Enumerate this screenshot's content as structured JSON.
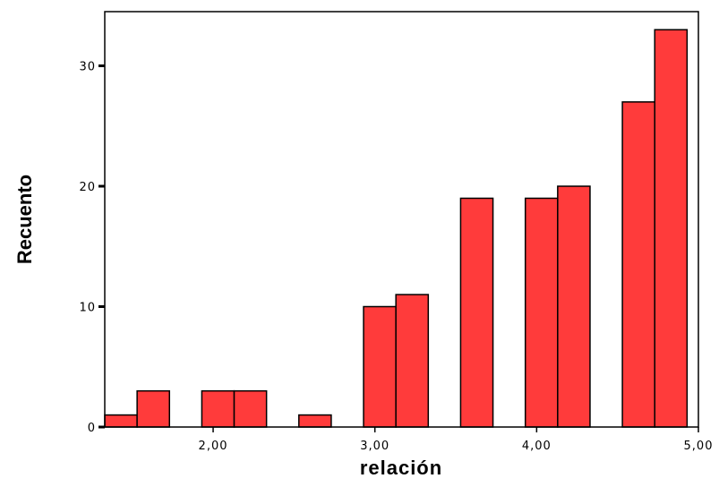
{
  "chart_data": {
    "type": "bar",
    "title": "",
    "xlabel": "relación",
    "ylabel": "Recuento",
    "xlim": [
      1.33,
      5.0
    ],
    "ylim": [
      0,
      34.5
    ],
    "grid": false,
    "bar_color": "#ff3b3b",
    "bar_edge_color": "#000000",
    "bins": [
      {
        "x0": 1.33,
        "x1": 1.53,
        "value": 1
      },
      {
        "x0": 1.53,
        "x1": 1.73,
        "value": 3
      },
      {
        "x0": 1.73,
        "x1": 1.93,
        "value": 0
      },
      {
        "x0": 1.93,
        "x1": 2.13,
        "value": 3
      },
      {
        "x0": 2.13,
        "x1": 2.33,
        "value": 3
      },
      {
        "x0": 2.33,
        "x1": 2.53,
        "value": 0
      },
      {
        "x0": 2.53,
        "x1": 2.73,
        "value": 1
      },
      {
        "x0": 2.73,
        "x1": 2.93,
        "value": 0
      },
      {
        "x0": 2.93,
        "x1": 3.13,
        "value": 10
      },
      {
        "x0": 3.13,
        "x1": 3.33,
        "value": 11
      },
      {
        "x0": 3.33,
        "x1": 3.53,
        "value": 0
      },
      {
        "x0": 3.53,
        "x1": 3.73,
        "value": 19
      },
      {
        "x0": 3.73,
        "x1": 3.93,
        "value": 0
      },
      {
        "x0": 3.93,
        "x1": 4.13,
        "value": 19
      },
      {
        "x0": 4.13,
        "x1": 4.33,
        "value": 20
      },
      {
        "x0": 4.33,
        "x1": 4.53,
        "value": 0
      },
      {
        "x0": 4.53,
        "x1": 4.73,
        "value": 27
      },
      {
        "x0": 4.73,
        "x1": 4.93,
        "value": 33
      }
    ],
    "x_ticks": [
      {
        "value": 2.0,
        "label": "2,00"
      },
      {
        "value": 3.0,
        "label": "3,00"
      },
      {
        "value": 4.0,
        "label": "4,00"
      },
      {
        "value": 5.0,
        "label": "5,00"
      }
    ],
    "y_ticks": [
      {
        "value": 0,
        "label": "0"
      },
      {
        "value": 10,
        "label": "10"
      },
      {
        "value": 20,
        "label": "20"
      },
      {
        "value": 30,
        "label": "30"
      }
    ]
  }
}
